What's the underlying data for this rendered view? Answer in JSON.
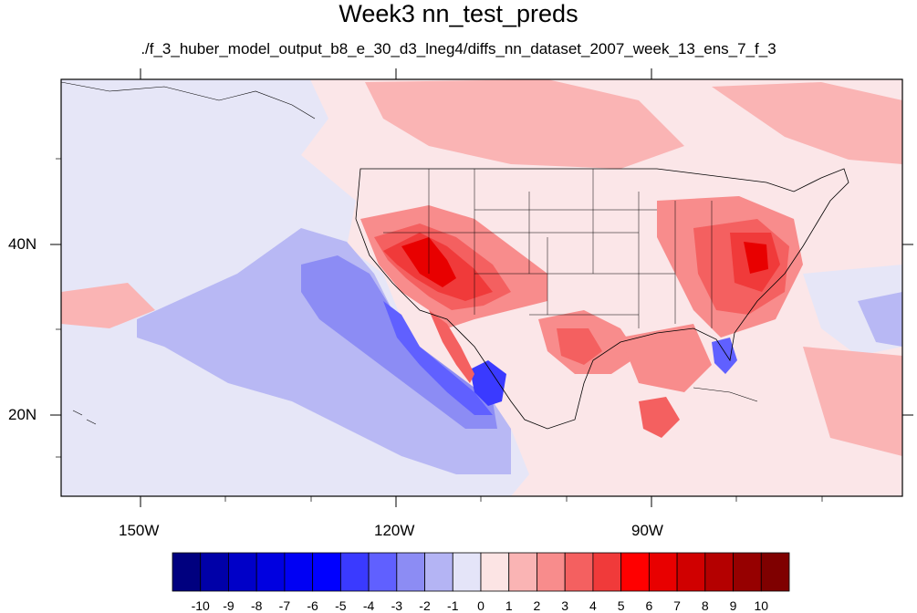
{
  "title": "Week3 nn_test_preds",
  "subtitle": "./f_3_huber_model_output_b8_e_30_d3_lneg4/diffs_nn_dataset_2007_week_13_ens_7_f_3",
  "axes": {
    "lat_labels": [
      "40N",
      "20N"
    ],
    "lon_labels": [
      "150W",
      "120W",
      "90W"
    ]
  },
  "colorbar": {
    "labels": [
      "-10",
      "-9",
      "-8",
      "-7",
      "-6",
      "-5",
      "-4",
      "-3",
      "-2",
      "-1",
      "0",
      "1",
      "2",
      "3",
      "4",
      "5",
      "6",
      "7",
      "8",
      "9",
      "10"
    ],
    "colors": [
      "#00007f",
      "#0000a8",
      "#0000c8",
      "#0000e0",
      "#0000f4",
      "#0000ff",
      "#3a3aff",
      "#6060ff",
      "#8c8cf4",
      "#b4b4f4",
      "#e4e4f8",
      "#fce4e4",
      "#fab4b4",
      "#f88c8c",
      "#f46060",
      "#f03a3a",
      "#ff0000",
      "#e80000",
      "#d00000",
      "#b40000",
      "#960000",
      "#7f0000"
    ]
  },
  "map": {
    "field": "prediction differences over North America",
    "colormap": "blue-white-red diverging",
    "background_color": "#fbe6e8",
    "ocean_tint_color": "#e6e6f7"
  }
}
